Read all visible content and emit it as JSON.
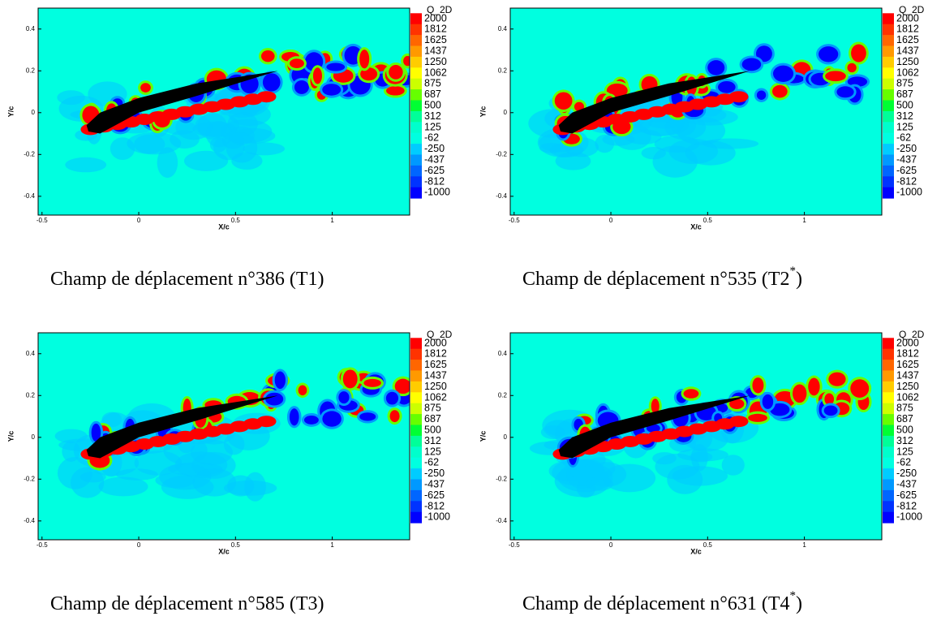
{
  "chart_data": [
    {
      "type": "contour",
      "xlabel": "X/c",
      "ylabel": "Y/c",
      "xlim": [
        -0.52,
        1.4
      ],
      "ylim": [
        -0.49,
        0.5
      ],
      "xticks": [
        -0.5,
        0,
        0.5,
        1
      ],
      "yticks": [
        0.4,
        0.2,
        0,
        -0.2,
        -0.4
      ],
      "colorbar": {
        "title": "Q_2D",
        "levels": [
          2000,
          1812,
          1625,
          1437,
          1250,
          1062,
          875,
          687,
          500,
          312,
          125,
          -62,
          -250,
          -437,
          -625,
          -812,
          -1000
        ],
        "colors": [
          "#ff0000",
          "#ff3300",
          "#ff6600",
          "#ff9900",
          "#ffcc00",
          "#ffff00",
          "#ccff00",
          "#66ff00",
          "#00ff33",
          "#00ff99",
          "#00ffcc",
          "#00ffe0",
          "#00ccff",
          "#0099ff",
          "#0066ff",
          "#0033ff",
          "#0000ff"
        ]
      },
      "caption": {
        "text": "Champ de déplacement n°386 (T1)"
      }
    },
    {
      "type": "contour",
      "xlabel": "X/c",
      "ylabel": "Y/c",
      "xlim": [
        -0.52,
        1.4
      ],
      "ylim": [
        -0.49,
        0.5
      ],
      "xticks": [
        -0.5,
        0,
        0.5,
        1
      ],
      "yticks": [
        0.4,
        0.2,
        0,
        -0.2,
        -0.4
      ],
      "colorbar": {
        "title": "Q_2D",
        "levels": [
          2000,
          1812,
          1625,
          1437,
          1250,
          1062,
          875,
          687,
          500,
          312,
          125,
          -62,
          -250,
          -437,
          -625,
          -812,
          -1000
        ],
        "colors": [
          "#ff0000",
          "#ff3300",
          "#ff6600",
          "#ff9900",
          "#ffcc00",
          "#ffff00",
          "#ccff00",
          "#66ff00",
          "#00ff33",
          "#00ff99",
          "#00ffcc",
          "#00ffe0",
          "#00ccff",
          "#0099ff",
          "#0066ff",
          "#0033ff",
          "#0000ff"
        ]
      },
      "caption": {
        "text": "Champ de déplacement n°535 (T2",
        "sup": "*",
        "end": ")"
      }
    },
    {
      "type": "contour",
      "xlabel": "X/c",
      "ylabel": "Y/c",
      "xlim": [
        -0.52,
        1.4
      ],
      "ylim": [
        -0.49,
        0.5
      ],
      "xticks": [
        -0.5,
        0,
        0.5,
        1
      ],
      "yticks": [
        0.4,
        0.2,
        0,
        -0.2,
        -0.4
      ],
      "colorbar": {
        "title": "Q_2D",
        "levels": [
          2000,
          1812,
          1625,
          1437,
          1250,
          1062,
          875,
          687,
          500,
          312,
          125,
          -62,
          -250,
          -437,
          -625,
          -812,
          -1000
        ],
        "colors": [
          "#ff0000",
          "#ff3300",
          "#ff6600",
          "#ff9900",
          "#ffcc00",
          "#ffff00",
          "#ccff00",
          "#66ff00",
          "#00ff33",
          "#00ff99",
          "#00ffcc",
          "#00ffe0",
          "#00ccff",
          "#0099ff",
          "#0066ff",
          "#0033ff",
          "#0000ff"
        ]
      },
      "caption": {
        "text": "Champ de déplacement n°585 (T3)"
      }
    },
    {
      "type": "contour",
      "xlabel": "X/c",
      "ylabel": "Y/c",
      "xlim": [
        -0.52,
        1.4
      ],
      "ylim": [
        -0.49,
        0.5
      ],
      "xticks": [
        -0.5,
        0,
        0.5,
        1
      ],
      "yticks": [
        0.4,
        0.2,
        0,
        -0.2,
        -0.4
      ],
      "colorbar": {
        "title": "Q_2D",
        "levels": [
          2000,
          1812,
          1625,
          1437,
          1250,
          1062,
          875,
          687,
          500,
          312,
          125,
          -62,
          -250,
          -437,
          -625,
          -812,
          -1000
        ],
        "colors": [
          "#ff0000",
          "#ff3300",
          "#ff6600",
          "#ff9900",
          "#ffcc00",
          "#ffff00",
          "#ccff00",
          "#66ff00",
          "#00ff33",
          "#00ff99",
          "#00ffcc",
          "#00ffe0",
          "#00ccff",
          "#0099ff",
          "#0066ff",
          "#0033ff",
          "#0000ff"
        ]
      },
      "caption": {
        "text": "Champ de déplacement n°631 (T4",
        "sup": "*",
        "end": ")"
      }
    }
  ]
}
